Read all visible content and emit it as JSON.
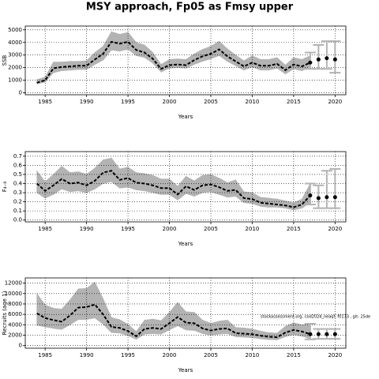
{
  "title": "MSY approach, Fp05 as Fmsy upper",
  "chart_data": [
    {
      "type": "line",
      "xlabel": "Years",
      "ylabel": "SSB",
      "color": "#000000",
      "band_color": "#b3b3b3",
      "bar_color": "#b3b3b3",
      "grid": true,
      "xlim": [
        1982.6,
        2021.3
      ],
      "xticks": [
        1985,
        1990,
        1995,
        2000,
        2005,
        2010,
        2015,
        2020
      ],
      "ylim": [
        -150,
        5300
      ],
      "yticks": [
        0,
        1000,
        2000,
        3000,
        4000,
        5000
      ],
      "x": [
        1984,
        1985,
        1986,
        1987,
        1988,
        1989,
        1990,
        1991,
        1992,
        1993,
        1994,
        1995,
        1996,
        1997,
        1998,
        1999,
        2000,
        2001,
        2002,
        2003,
        2004,
        2005,
        2006,
        2007,
        2008,
        2009,
        2010,
        2011,
        2012,
        2013,
        2014,
        2015,
        2016,
        2017
      ],
      "median": [
        800,
        1000,
        1950,
        2050,
        2100,
        2150,
        2150,
        2650,
        3100,
        4050,
        3900,
        4050,
        3400,
        3200,
        2700,
        1900,
        2200,
        2250,
        2200,
        2600,
        2900,
        3100,
        3450,
        2900,
        2500,
        2100,
        2400,
        2150,
        2150,
        2300,
        1800,
        2250,
        2100,
        2400
      ],
      "lower": [
        700,
        850,
        1600,
        1750,
        1800,
        1850,
        1850,
        2250,
        2600,
        3400,
        3300,
        3450,
        2950,
        2800,
        2350,
        1650,
        1950,
        2000,
        1950,
        2250,
        2500,
        2700,
        2950,
        2500,
        2150,
        1800,
        2050,
        1800,
        1800,
        1950,
        1500,
        1900,
        1750,
        2050
      ],
      "upper": [
        1050,
        1250,
        2450,
        2450,
        2500,
        2500,
        2550,
        3200,
        3700,
        4850,
        4650,
        4800,
        4000,
        3800,
        3200,
        2250,
        2650,
        2700,
        2650,
        3100,
        3450,
        3700,
        4100,
        3500,
        3000,
        2550,
        2950,
        2650,
        2650,
        2800,
        2200,
        2800,
        2650,
        2950
      ],
      "projection": {
        "x": [
          2017,
          2018,
          2019,
          2020
        ],
        "values": [
          2400,
          2650,
          2750,
          2650
        ],
        "lower": [
          1900,
          1900,
          1900,
          1600
        ],
        "upper": [
          3200,
          3800,
          4100,
          4100
        ]
      }
    },
    {
      "type": "line",
      "xlabel": "Years",
      "ylabel": "F₄₋₈",
      "color": "#000000",
      "band_color": "#b3b3b3",
      "bar_color": "#b3b3b3",
      "grid": true,
      "xlim": [
        1982.6,
        2021.3
      ],
      "xticks": [
        1985,
        1990,
        1995,
        2000,
        2005,
        2010,
        2015,
        2020
      ],
      "ylim": [
        -0.02,
        0.75
      ],
      "yticks": [
        {
          "value": 0,
          "label": "0.0"
        },
        0.1,
        0.2,
        0.3,
        0.4,
        0.5,
        0.6,
        0.7
      ],
      "x": [
        1984,
        1985,
        1986,
        1987,
        1988,
        1989,
        1990,
        1991,
        1992,
        1993,
        1994,
        1995,
        1996,
        1997,
        1998,
        1999,
        2000,
        2001,
        2002,
        2003,
        2004,
        2005,
        2006,
        2007,
        2008,
        2009,
        2010,
        2011,
        2012,
        2013,
        2014,
        2015,
        2016,
        2017
      ],
      "median": [
        0.4,
        0.32,
        0.38,
        0.45,
        0.4,
        0.41,
        0.38,
        0.43,
        0.52,
        0.54,
        0.44,
        0.46,
        0.41,
        0.4,
        0.38,
        0.35,
        0.35,
        0.28,
        0.37,
        0.33,
        0.38,
        0.39,
        0.36,
        0.32,
        0.33,
        0.24,
        0.23,
        0.19,
        0.18,
        0.17,
        0.16,
        0.14,
        0.17,
        0.27
      ],
      "lower": [
        0.3,
        0.24,
        0.28,
        0.34,
        0.31,
        0.32,
        0.3,
        0.34,
        0.4,
        0.42,
        0.35,
        0.36,
        0.33,
        0.32,
        0.3,
        0.28,
        0.28,
        0.22,
        0.29,
        0.26,
        0.3,
        0.31,
        0.28,
        0.25,
        0.26,
        0.19,
        0.18,
        0.15,
        0.14,
        0.14,
        0.13,
        0.11,
        0.13,
        0.19
      ],
      "upper": [
        0.54,
        0.42,
        0.5,
        0.59,
        0.52,
        0.53,
        0.5,
        0.57,
        0.66,
        0.68,
        0.56,
        0.58,
        0.52,
        0.51,
        0.49,
        0.45,
        0.45,
        0.37,
        0.48,
        0.43,
        0.49,
        0.5,
        0.46,
        0.41,
        0.44,
        0.31,
        0.3,
        0.25,
        0.24,
        0.23,
        0.21,
        0.19,
        0.23,
        0.4
      ],
      "projection": {
        "x": [
          2017,
          2018,
          2019,
          2020
        ],
        "values": [
          0.27,
          0.24,
          0.25,
          0.25
        ],
        "lower": [
          0.17,
          0.13,
          0.13,
          0.13
        ],
        "upper": [
          0.4,
          0.38,
          0.54,
          0.56
        ]
      }
    },
    {
      "type": "line",
      "xlabel": "Years",
      "ylabel": "Recruits (age 1)",
      "color": "#000000",
      "band_color": "#b3b3b3",
      "bar_color": "#b3b3b3",
      "grid": true,
      "xlim": [
        1982.6,
        2021.3
      ],
      "xticks": [
        1985,
        1990,
        1995,
        2000,
        2005,
        2010,
        2015,
        2020
      ],
      "ylim": [
        -500,
        13000
      ],
      "yticks": [
        0,
        2000,
        4000,
        6000,
        8000,
        10000,
        12000
      ],
      "annotation": "stockassessment.org, cod2024_neaqf, f0173 , git: 25de",
      "x": [
        1984,
        1985,
        1986,
        1987,
        1988,
        1989,
        1990,
        1991,
        1992,
        1993,
        1994,
        1995,
        1996,
        1997,
        1998,
        1999,
        2000,
        2001,
        2002,
        2003,
        2004,
        2005,
        2006,
        2007,
        2008,
        2009,
        2010,
        2011,
        2012,
        2013,
        2014,
        2015,
        2016,
        2017
      ],
      "median": [
        6200,
        5300,
        4900,
        4600,
        5800,
        7300,
        7400,
        7900,
        6000,
        3600,
        3400,
        2800,
        1800,
        3200,
        3400,
        3200,
        4300,
        5500,
        4400,
        4300,
        3300,
        2900,
        3200,
        3300,
        2400,
        2300,
        2200,
        1900,
        1700,
        1600,
        2500,
        3000,
        2700,
        2200
      ],
      "lower": [
        3900,
        3600,
        3300,
        3100,
        4000,
        5000,
        5000,
        5300,
        4100,
        2500,
        2400,
        1900,
        1200,
        2200,
        2300,
        2200,
        3000,
        3800,
        3000,
        2900,
        2300,
        2000,
        2200,
        2300,
        1700,
        1600,
        1500,
        1300,
        1150,
        1100,
        1700,
        2100,
        1800,
        1300
      ],
      "upper": [
        10000,
        7800,
        7200,
        7000,
        8800,
        10900,
        11000,
        12200,
        9000,
        5400,
        5000,
        4100,
        2700,
        4900,
        5100,
        4800,
        6400,
        8300,
        6500,
        6400,
        4900,
        4300,
        4700,
        4900,
        3500,
        3400,
        3200,
        2800,
        2500,
        2400,
        3700,
        4400,
        4000,
        4200
      ],
      "projection": {
        "x": [
          2017,
          2018,
          2019,
          2020
        ],
        "values": [
          2200,
          2200,
          2200,
          2200
        ],
        "lower": [
          1200,
          1300,
          1300,
          1300
        ],
        "upper": [
          4200,
          3200,
          3200,
          3200
        ]
      }
    }
  ]
}
